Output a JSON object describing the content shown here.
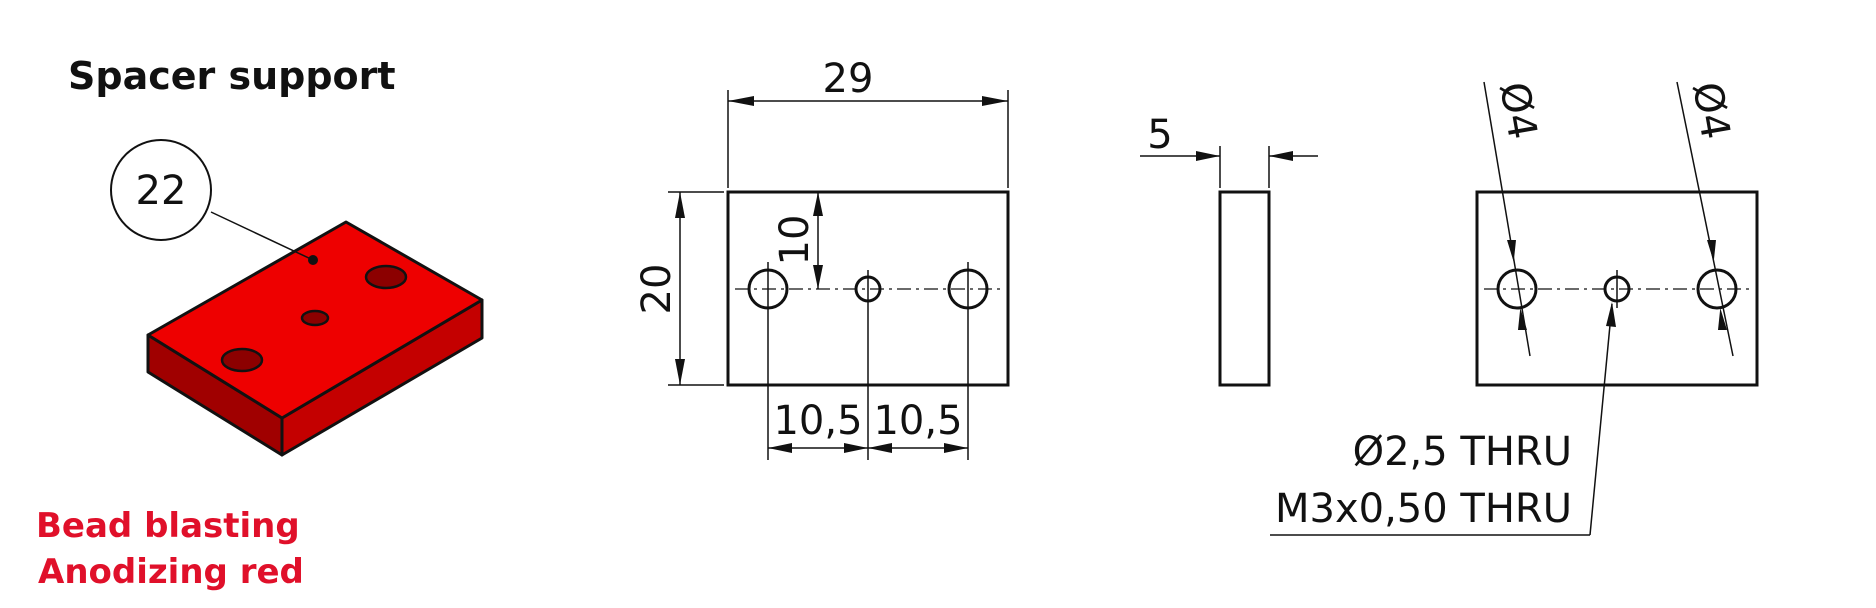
{
  "title": "Spacer support",
  "item_number": "22",
  "notes": [
    "Bead blasting",
    "Anodizing red"
  ],
  "colors": {
    "accent": "#e0102a",
    "part_top": "#ee0000",
    "part_front": "#c40000",
    "part_side": "#a00000",
    "line": "#111111"
  },
  "dimensions": {
    "length": "29",
    "height": "20",
    "hole_offset": "10",
    "spacing_left": "10,5",
    "spacing_right": "10,5",
    "thickness": "5",
    "hole_dia_left": "Ø4",
    "hole_dia_right": "Ø4"
  },
  "callout": {
    "line1": "Ø2,5 THRU",
    "line2": "M3x0,50 THRU"
  }
}
